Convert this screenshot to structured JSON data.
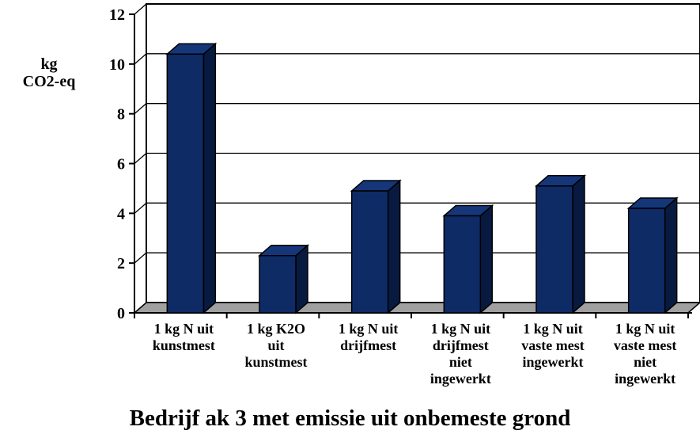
{
  "chart_data": {
    "type": "bar",
    "title": "Bedrijf ak 3 met emissie uit onbemeste grond",
    "ylabel_lines": [
      "kg",
      "CO2-eq"
    ],
    "xlabel": "",
    "ylim": [
      0,
      12
    ],
    "yticks": [
      "0",
      "2",
      "4",
      "6",
      "8",
      "10",
      "12"
    ],
    "grid": true,
    "legend": "none",
    "style": "3d",
    "colors": {
      "bar_front": "#0f2b66",
      "bar_side": "#081a40",
      "bar_top": "#16367a",
      "floor": "#a0a0a0"
    },
    "categories": [
      [
        "1 kg N uit",
        "kunstmest"
      ],
      [
        "1 kg K2O",
        "uit",
        "kunstmest"
      ],
      [
        "1 kg N uit",
        "drijfmest"
      ],
      [
        "1 kg N uit",
        "drijfmest",
        "niet",
        "ingewerkt"
      ],
      [
        "1 kg N uit",
        "vaste mest",
        "ingewerkt"
      ],
      [
        "1 kg N uit",
        "vaste mest",
        "niet",
        "ingewerkt"
      ]
    ],
    "values": [
      10.4,
      2.3,
      4.9,
      3.9,
      5.1,
      4.2
    ]
  }
}
